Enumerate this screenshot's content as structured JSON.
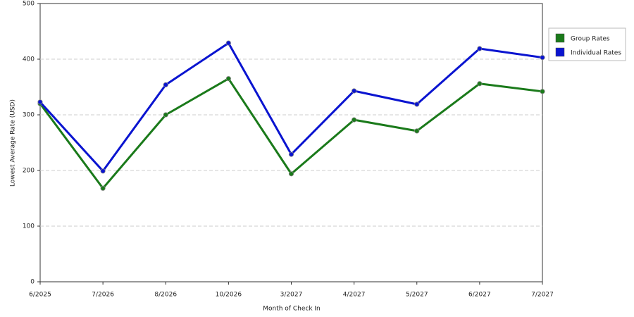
{
  "chart_data": {
    "type": "line",
    "x_label": "Month of Check In",
    "y_label": "Lowest Average Rate (USD)",
    "categories": [
      "6/2025",
      "7/2026",
      "8/2026",
      "10/2026",
      "3/2027",
      "4/2027",
      "5/2027",
      "6/2027",
      "7/2027"
    ],
    "series": [
      {
        "name": "Group Rates",
        "color": "#1a7a1a",
        "values": [
          320,
          168,
          300,
          365,
          194,
          291,
          271,
          356,
          342
        ]
      },
      {
        "name": "Individual Rates",
        "color": "#0a14d0",
        "values": [
          323,
          199,
          354,
          429,
          229,
          343,
          319,
          419,
          403
        ]
      }
    ],
    "ylim": [
      0,
      500
    ],
    "yticks": [
      0,
      100,
      200,
      300,
      400,
      500
    ],
    "grid": true,
    "legend": "right"
  }
}
